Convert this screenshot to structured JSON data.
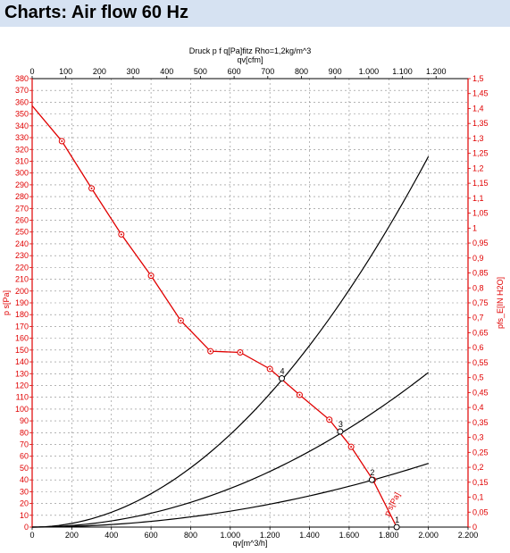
{
  "page_title": "Charts: Air flow 60 Hz",
  "chart_data": {
    "type": "line",
    "subtitle": "Druck p f q[Pa]fitz Rho=1,2kg/m^3",
    "top_xlabel": "qv[cfm]",
    "xlabel": "qv[m^3/h]",
    "ylabel_left": "p s[Pa]",
    "ylabel_right": "pfs_E[IN H2O]",
    "xlim": [
      0,
      2200
    ],
    "ylim": [
      0,
      380
    ],
    "top_xlim_cfm": [
      0,
      1200
    ],
    "right_ylim_inh2o": [
      0,
      1.5
    ],
    "grid": true,
    "colors": {
      "fan_curve": "#e00000",
      "system_curves": "#000000",
      "right_axis": "#e00000",
      "left_axis": "#e00000"
    },
    "x_ticks": [
      "0",
      "200",
      "400",
      "600",
      "800",
      "1.000",
      "1.200",
      "1.400",
      "1.600",
      "1.800",
      "2.000",
      "2.200"
    ],
    "top_x_ticks": [
      "0",
      "100",
      "200",
      "300",
      "400",
      "500",
      "600",
      "700",
      "800",
      "900",
      "1.000",
      "1.100",
      "1.200"
    ],
    "y_ticks": [
      "0",
      "10",
      "20",
      "30",
      "40",
      "50",
      "60",
      "70",
      "80",
      "90",
      "100",
      "110",
      "120",
      "130",
      "140",
      "150",
      "160",
      "170",
      "180",
      "190",
      "200",
      "210",
      "220",
      "230",
      "240",
      "250",
      "260",
      "270",
      "280",
      "290",
      "300",
      "310",
      "320",
      "330",
      "340",
      "350",
      "360",
      "370",
      "380"
    ],
    "right_y_ticks": [
      "0",
      "0,05",
      "0,1",
      "0,15",
      "0,2",
      "0,25",
      "0,3",
      "0,35",
      "0,4",
      "0,45",
      "0,5",
      "0,55",
      "0,6",
      "0,65",
      "0,7",
      "0,75",
      "0,8",
      "0,85",
      "0,9",
      "0,95",
      "1",
      "1,05",
      "1,1",
      "1,15",
      "1,2",
      "1,25",
      "1,3",
      "1,35",
      "1,4",
      "1,45",
      "1,5"
    ],
    "series": [
      {
        "name": "p s[Pa]",
        "x": [
          0,
          150,
          300,
          450,
          600,
          750,
          900,
          1050,
          1200,
          1350,
          1500,
          1610,
          1720,
          1840
        ],
        "y": [
          357,
          327,
          287,
          248,
          213,
          175,
          149,
          148,
          134,
          112,
          91,
          68,
          40,
          0
        ]
      }
    ],
    "system_curves": [
      {
        "label": "1",
        "k": 0,
        "x_end": 2000,
        "y_end": 0
      },
      {
        "label": "2",
        "x_end": 2000,
        "y_end": 54
      },
      {
        "label": "3",
        "x_end": 2000,
        "y_end": 131
      },
      {
        "label": "4",
        "x_end": 2000,
        "y_end": 314
      }
    ],
    "operating_points": [
      {
        "label": "1",
        "x": 1840,
        "y": 0
      },
      {
        "label": "2",
        "x": 1715,
        "y": 40
      },
      {
        "label": "3",
        "x": 1555,
        "y": 81
      },
      {
        "label": "4",
        "x": 1260,
        "y": 126
      }
    ]
  }
}
